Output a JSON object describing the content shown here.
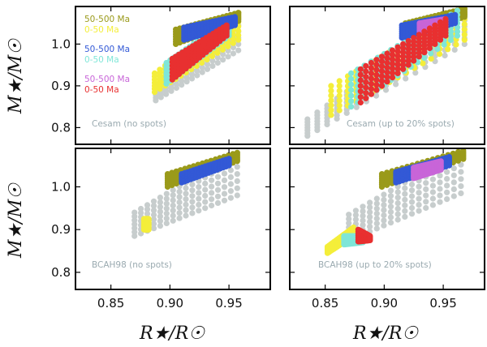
{
  "chart_data": {
    "type": "scatter",
    "layout": "2x2 grid, shared x-axis per column, shared y-axis per row",
    "xlabel": "R★/R☉",
    "ylabel": "M★/M☉",
    "xlim": [
      0.82,
      0.985
    ],
    "ylim": [
      0.76,
      1.09
    ],
    "xticks": [
      "0.85",
      "0.90",
      "0.95"
    ],
    "yticks": [
      "0.8",
      "0.9",
      "1.0"
    ],
    "colors": {
      "grey": "#c7cdcd",
      "olive": "#9a9a1a",
      "yellow": "#f4ee3a",
      "blue": "#3359d6",
      "cyan": "#7fe6d8",
      "magenta": "#c865d8",
      "red": "#e83030"
    },
    "legend": [
      {
        "label": "50-500 Ma",
        "color": "#9a9a1a"
      },
      {
        "label": "0-50 Ma",
        "color": "#f4ee3a"
      },
      {
        "label": "50-500 Ma",
        "color": "#3359d6"
      },
      {
        "label": "0-50 Ma",
        "color": "#7fe6d8"
      },
      {
        "label": "50-500 Ma",
        "color": "#c865d8"
      },
      {
        "label": "0-50 Ma",
        "color": "#e83030"
      }
    ],
    "panels": [
      {
        "annotation": "Cesam (no spots)",
        "series": [
          {
            "color": "grey",
            "band": {
              "x": [
                0.888,
                0.958
              ],
              "ymin": [
                0.865,
                0.985
              ],
              "ymax": [
                0.905,
                1.075
              ]
            }
          },
          {
            "color": "yellow",
            "band": {
              "x": [
                0.887,
                0.958
              ],
              "ymin": [
                0.885,
                1.01
              ],
              "ymax": [
                0.93,
                1.075
              ]
            }
          },
          {
            "color": "cyan",
            "band": {
              "x": [
                0.897,
                0.95
              ],
              "ymin": [
                0.905,
                1.02
              ],
              "ymax": [
                0.955,
                1.06
              ]
            }
          },
          {
            "color": "red",
            "band": {
              "x": [
                0.902,
                0.948
              ],
              "ymin": [
                0.915,
                1.02
              ],
              "ymax": [
                0.965,
                1.045
              ]
            }
          },
          {
            "color": "olive",
            "band": {
              "x": [
                0.905,
                0.958
              ],
              "ymin": [
                1.0,
                1.055
              ],
              "ymax": [
                1.035,
                1.075
              ]
            }
          },
          {
            "color": "blue",
            "band": {
              "x": [
                0.912,
                0.955
              ],
              "ymin": [
                1.01,
                1.045
              ],
              "ymax": [
                1.04,
                1.065
              ]
            }
          }
        ]
      },
      {
        "annotation": "Cesam (up to 20% spots)",
        "series": [
          {
            "color": "grey",
            "band": {
              "x": [
                0.835,
                0.968
              ],
              "ymin": [
                0.78,
                1.0
              ],
              "ymax": [
                0.82,
                1.085
              ]
            }
          },
          {
            "color": "yellow",
            "band": {
              "x": [
                0.855,
                0.968
              ],
              "ymin": [
                0.83,
                1.01
              ],
              "ymax": [
                0.9,
                1.085
              ]
            }
          },
          {
            "color": "cyan",
            "band": {
              "x": [
                0.872,
                0.962
              ],
              "ymin": [
                0.85,
                1.02
              ],
              "ymax": [
                0.93,
                1.08
              ]
            }
          },
          {
            "color": "red",
            "band": {
              "x": [
                0.88,
                0.952
              ],
              "ymin": [
                0.86,
                1.02
              ],
              "ymax": [
                0.94,
                1.06
              ]
            }
          },
          {
            "color": "olive",
            "band": {
              "x": [
                0.918,
                0.968
              ],
              "ymin": [
                1.02,
                1.065
              ],
              "ymax": [
                1.05,
                1.085
              ]
            }
          },
          {
            "color": "blue",
            "band": {
              "x": [
                0.915,
                0.96
              ],
              "ymin": [
                1.015,
                1.05
              ],
              "ymax": [
                1.045,
                1.07
              ]
            }
          },
          {
            "color": "magenta",
            "band": {
              "x": [
                0.93,
                0.952
              ],
              "ymin": [
                1.03,
                1.045
              ],
              "ymax": [
                1.05,
                1.06
              ]
            }
          }
        ]
      },
      {
        "annotation": "BCAH98 (no spots)",
        "series": [
          {
            "color": "grey",
            "band": {
              "x": [
                0.87,
                0.957
              ],
              "ymin": [
                0.885,
                0.98
              ],
              "ymax": [
                0.94,
                1.08
              ]
            }
          },
          {
            "color": "olive",
            "band": {
              "x": [
                0.898,
                0.957
              ],
              "ymin": [
                1.0,
                1.06
              ],
              "ymax": [
                1.03,
                1.08
              ]
            }
          },
          {
            "color": "blue",
            "band": {
              "x": [
                0.91,
                0.95
              ],
              "ymin": [
                1.01,
                1.05
              ],
              "ymax": [
                1.03,
                1.066
              ]
            }
          },
          {
            "color": "yellow",
            "band": {
              "x": [
                0.878,
                0.882
              ],
              "ymin": [
                0.9,
                0.9
              ],
              "ymax": [
                0.925,
                0.925
              ]
            }
          }
        ]
      },
      {
        "annotation": "BCAH98 (up to 20% spots)",
        "series": [
          {
            "color": "grey",
            "band": {
              "x": [
                0.87,
                0.965
              ],
              "ymin": [
                0.875,
                0.985
              ],
              "ymax": [
                0.935,
                1.085
              ]
            }
          },
          {
            "color": "olive",
            "band": {
              "x": [
                0.898,
                0.967
              ],
              "ymin": [
                1.0,
                1.065
              ],
              "ymax": [
                1.03,
                1.085
              ]
            }
          },
          {
            "color": "blue",
            "band": {
              "x": [
                0.91,
                0.955
              ],
              "ymin": [
                1.01,
                1.05
              ],
              "ymax": [
                1.035,
                1.07
              ]
            }
          },
          {
            "color": "magenta",
            "band": {
              "x": [
                0.925,
                0.948
              ],
              "ymin": [
                1.02,
                1.04
              ],
              "ymax": [
                1.045,
                1.06
              ]
            }
          },
          {
            "color": "yellow",
            "band": {
              "x": [
                0.852,
                0.874
              ],
              "ymin": [
                0.845,
                0.885
              ],
              "ymax": [
                0.86,
                0.905
              ]
            }
          },
          {
            "color": "cyan",
            "band": {
              "x": [
                0.866,
                0.882
              ],
              "ymin": [
                0.865,
                0.87
              ],
              "ymax": [
                0.885,
                0.885
              ]
            }
          },
          {
            "color": "red",
            "band": {
              "x": [
                0.878,
                0.888
              ],
              "ymin": [
                0.872,
                0.875
              ],
              "ymax": [
                0.9,
                0.885
              ]
            }
          }
        ]
      }
    ]
  }
}
